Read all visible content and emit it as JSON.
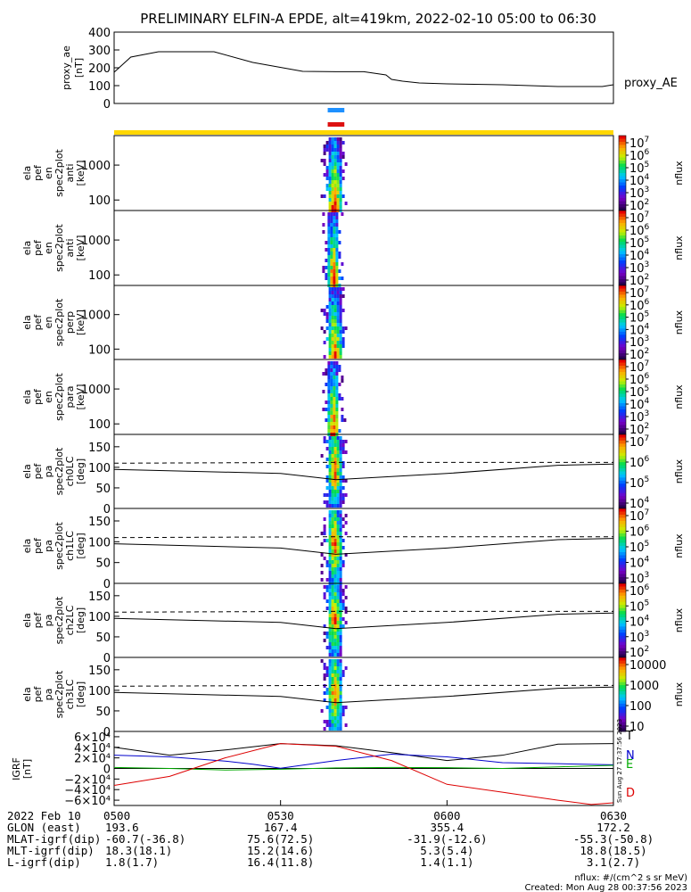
{
  "title": "PRELIMINARY ELFIN-A EPDE, alt=419km, 2022-02-10 05:00 to 06:30",
  "colors": {
    "blue_bar": "#1e90ff",
    "red_bar": "#dd1111",
    "yellow_bar": "#ffd700",
    "igrf_blue": "#0000cc",
    "igrf_green": "#00aa00",
    "igrf_red": "#dd0000"
  },
  "chart_data": [
    {
      "type": "line",
      "panel": "proxy_ae",
      "ylabel": [
        "proxy_ae",
        "[nT]"
      ],
      "legend": "proxy_AE",
      "ylim": [
        0,
        400
      ],
      "yticks": [
        "400",
        "300",
        "200",
        "100",
        "0"
      ],
      "series": [
        {
          "name": "proxy_AE",
          "x": [
            0,
            3,
            8,
            18,
            25,
            34,
            40,
            45,
            49,
            50,
            52,
            55,
            60,
            70,
            80,
            88,
            90
          ],
          "values": [
            175,
            260,
            290,
            290,
            230,
            180,
            178,
            178,
            160,
            135,
            125,
            115,
            110,
            105,
            95,
            95,
            105
          ]
        }
      ]
    },
    {
      "type": "heatmap",
      "panel": "anti",
      "ylabel": [
        "ela",
        "pef",
        "en",
        "spec2plot",
        "anti",
        "[keV]"
      ],
      "ylim": [
        50,
        7000
      ],
      "scale": "log",
      "yticks": [
        "1000",
        "100"
      ],
      "clabel": "nflux",
      "cticks": [
        "10^7",
        "10^6",
        "10^5",
        "10^4",
        "10^3",
        "10^2"
      ],
      "event_x": [
        38.5,
        40.5
      ],
      "peak_x": 39.5
    },
    {
      "type": "heatmap",
      "panel": "anti",
      "ylabel": [
        "ela",
        "pef",
        "en",
        "spec2plot",
        "anti",
        "[keV]"
      ],
      "ylim": [
        50,
        7000
      ],
      "scale": "log",
      "yticks": [
        "1000",
        "100"
      ],
      "clabel": "nflux",
      "cticks": [
        "10^7",
        "10^6",
        "10^5",
        "10^4",
        "10^3",
        "10^2"
      ],
      "event_x": [
        38.8,
        40.2
      ],
      "peak_x": 39.3
    },
    {
      "type": "heatmap",
      "panel": "perp",
      "ylabel": [
        "ela",
        "pef",
        "en",
        "spec2plot",
        "perp",
        "[keV]"
      ],
      "ylim": [
        50,
        7000
      ],
      "scale": "log",
      "yticks": [
        "1000",
        "100"
      ],
      "clabel": "nflux",
      "cticks": [
        "10^7",
        "10^6",
        "10^5",
        "10^4",
        "10^3",
        "10^2"
      ],
      "event_x": [
        38.5,
        40.5
      ],
      "peak_x": 39.5
    },
    {
      "type": "heatmap",
      "panel": "para",
      "ylabel": [
        "ela",
        "pef",
        "en",
        "spec2plot",
        "para",
        "[keV]"
      ],
      "ylim": [
        50,
        7000
      ],
      "scale": "log",
      "yticks": [
        "1000",
        "100"
      ],
      "clabel": "nflux",
      "cticks": [
        "10^7",
        "10^6",
        "10^5",
        "10^4",
        "10^3",
        "10^2"
      ],
      "event_x": [
        38.8,
        40.2
      ],
      "peak_x": 39.3
    },
    {
      "type": "heatmap",
      "panel": "ch0LC",
      "ylabel": [
        "ela",
        "pef",
        "pa",
        "spec2plot",
        "ch0LC",
        "[deg]"
      ],
      "ylim": [
        0,
        180
      ],
      "yticks": [
        "150",
        "100",
        "50",
        "0"
      ],
      "clabel": "nflux",
      "cticks": [
        "10^7",
        "10^6",
        "10^5",
        "10^4"
      ],
      "event_x": [
        38.5,
        40.5
      ],
      "peak_x": 39.5
    },
    {
      "type": "heatmap",
      "panel": "ch1LC",
      "ylabel": [
        "ela",
        "pef",
        "pa",
        "spec2plot",
        "ch1LC",
        "[deg]"
      ],
      "ylim": [
        0,
        180
      ],
      "yticks": [
        "150",
        "100",
        "50",
        "0"
      ],
      "clabel": "nflux",
      "cticks": [
        "10^7",
        "10^6",
        "10^5",
        "10^4",
        "10^3"
      ],
      "event_x": [
        38.5,
        40.5
      ],
      "peak_x": 39.5
    },
    {
      "type": "heatmap",
      "panel": "ch2LC",
      "ylabel": [
        "ela",
        "pef",
        "pa",
        "spec2plot",
        "ch2LC",
        "[deg]"
      ],
      "ylim": [
        0,
        180
      ],
      "yticks": [
        "150",
        "100",
        "50",
        "0"
      ],
      "clabel": "nflux",
      "cticks": [
        "10^6",
        "10^5",
        "10^4",
        "10^3",
        "10^2"
      ],
      "event_x": [
        38.5,
        40.5
      ],
      "peak_x": 39.5
    },
    {
      "type": "heatmap",
      "panel": "ch3LC",
      "ylabel": [
        "ela",
        "pef",
        "pa",
        "spec2plot",
        "ch3LC",
        "[deg]"
      ],
      "ylim": [
        0,
        180
      ],
      "yticks": [
        "150",
        "100",
        "50",
        "0"
      ],
      "clabel": "nflux",
      "cticks": [
        "10000",
        "1000",
        "100",
        "10"
      ],
      "event_x": [
        38.5,
        40.5
      ],
      "peak_x": 39.5
    },
    {
      "type": "line",
      "panel": "IGRF",
      "ylabel": [
        "IGRF",
        "[nT]"
      ],
      "ylim": [
        -70000,
        70000
      ],
      "yticks": [
        "6×10⁴",
        "4×10⁴",
        "2×10⁴",
        "0",
        "−2×10⁴",
        "−4×10⁴",
        "−6×10⁴"
      ],
      "series": [
        {
          "name": "T",
          "x": [
            0,
            10,
            20,
            30,
            40,
            50,
            60,
            70,
            80,
            90
          ],
          "values": [
            40000,
            25000,
            35000,
            47000,
            43000,
            30000,
            15000,
            25000,
            46000,
            47000
          ]
        },
        {
          "name": "N",
          "x": [
            0,
            10,
            20,
            25,
            30,
            40,
            50,
            60,
            70,
            80,
            90
          ],
          "values": [
            25000,
            22000,
            14000,
            8000,
            500,
            15000,
            27000,
            22000,
            11000,
            9000,
            7000
          ]
        },
        {
          "name": "E",
          "x": [
            0,
            10,
            20,
            30,
            40,
            50,
            60,
            70,
            80,
            90
          ],
          "values": [
            2000,
            0,
            -3000,
            -1500,
            1000,
            2000,
            1500,
            0,
            3000,
            6000
          ]
        },
        {
          "name": "D",
          "x": [
            0,
            10,
            20,
            30,
            40,
            50,
            60,
            70,
            80,
            86,
            90
          ],
          "values": [
            -32000,
            -15000,
            20000,
            47000,
            42000,
            15000,
            -30000,
            -45000,
            -60000,
            -68000,
            -65000
          ]
        }
      ],
      "side_labels": [
        "T",
        "N",
        "E",
        "D"
      ]
    }
  ],
  "x_axis": {
    "ticks": [
      "0500",
      "0530",
      "0600",
      "0630"
    ],
    "tick_x": [
      0,
      30,
      60,
      90
    ]
  },
  "event_marks": {
    "blue": [
      38.5,
      41.5
    ],
    "red": [
      38.5,
      41.5
    ]
  },
  "orbit_table": {
    "header": "2022 Feb 10",
    "rows": [
      {
        "label": "GLON (east)",
        "values": [
          "193.6",
          "167.4",
          "355.4",
          "172.2"
        ]
      },
      {
        "label": "MLAT-igrf(dip)",
        "values": [
          "-60.7(-36.8)",
          "75.6(72.5)",
          "-31.9(-12.6)",
          "-55.3(-50.8)"
        ]
      },
      {
        "label": "MLT-igrf(dip)",
        "values": [
          "18.3(18.1)",
          "15.2(14.6)",
          "5.3(5.4)",
          "18.8(18.5)"
        ]
      },
      {
        "label": "L-igrf(dip)",
        "values": [
          "1.8(1.7)",
          "16.4(11.8)",
          "1.4(1.1)",
          "3.1(2.7)"
        ]
      }
    ]
  },
  "footer": {
    "units": "nflux: #/(cm^2 s sr MeV)",
    "created": "Created: Mon Aug 28 00:37:56 2023",
    "side_stamp": "Sun Aug 27 17:37:56 2023"
  }
}
